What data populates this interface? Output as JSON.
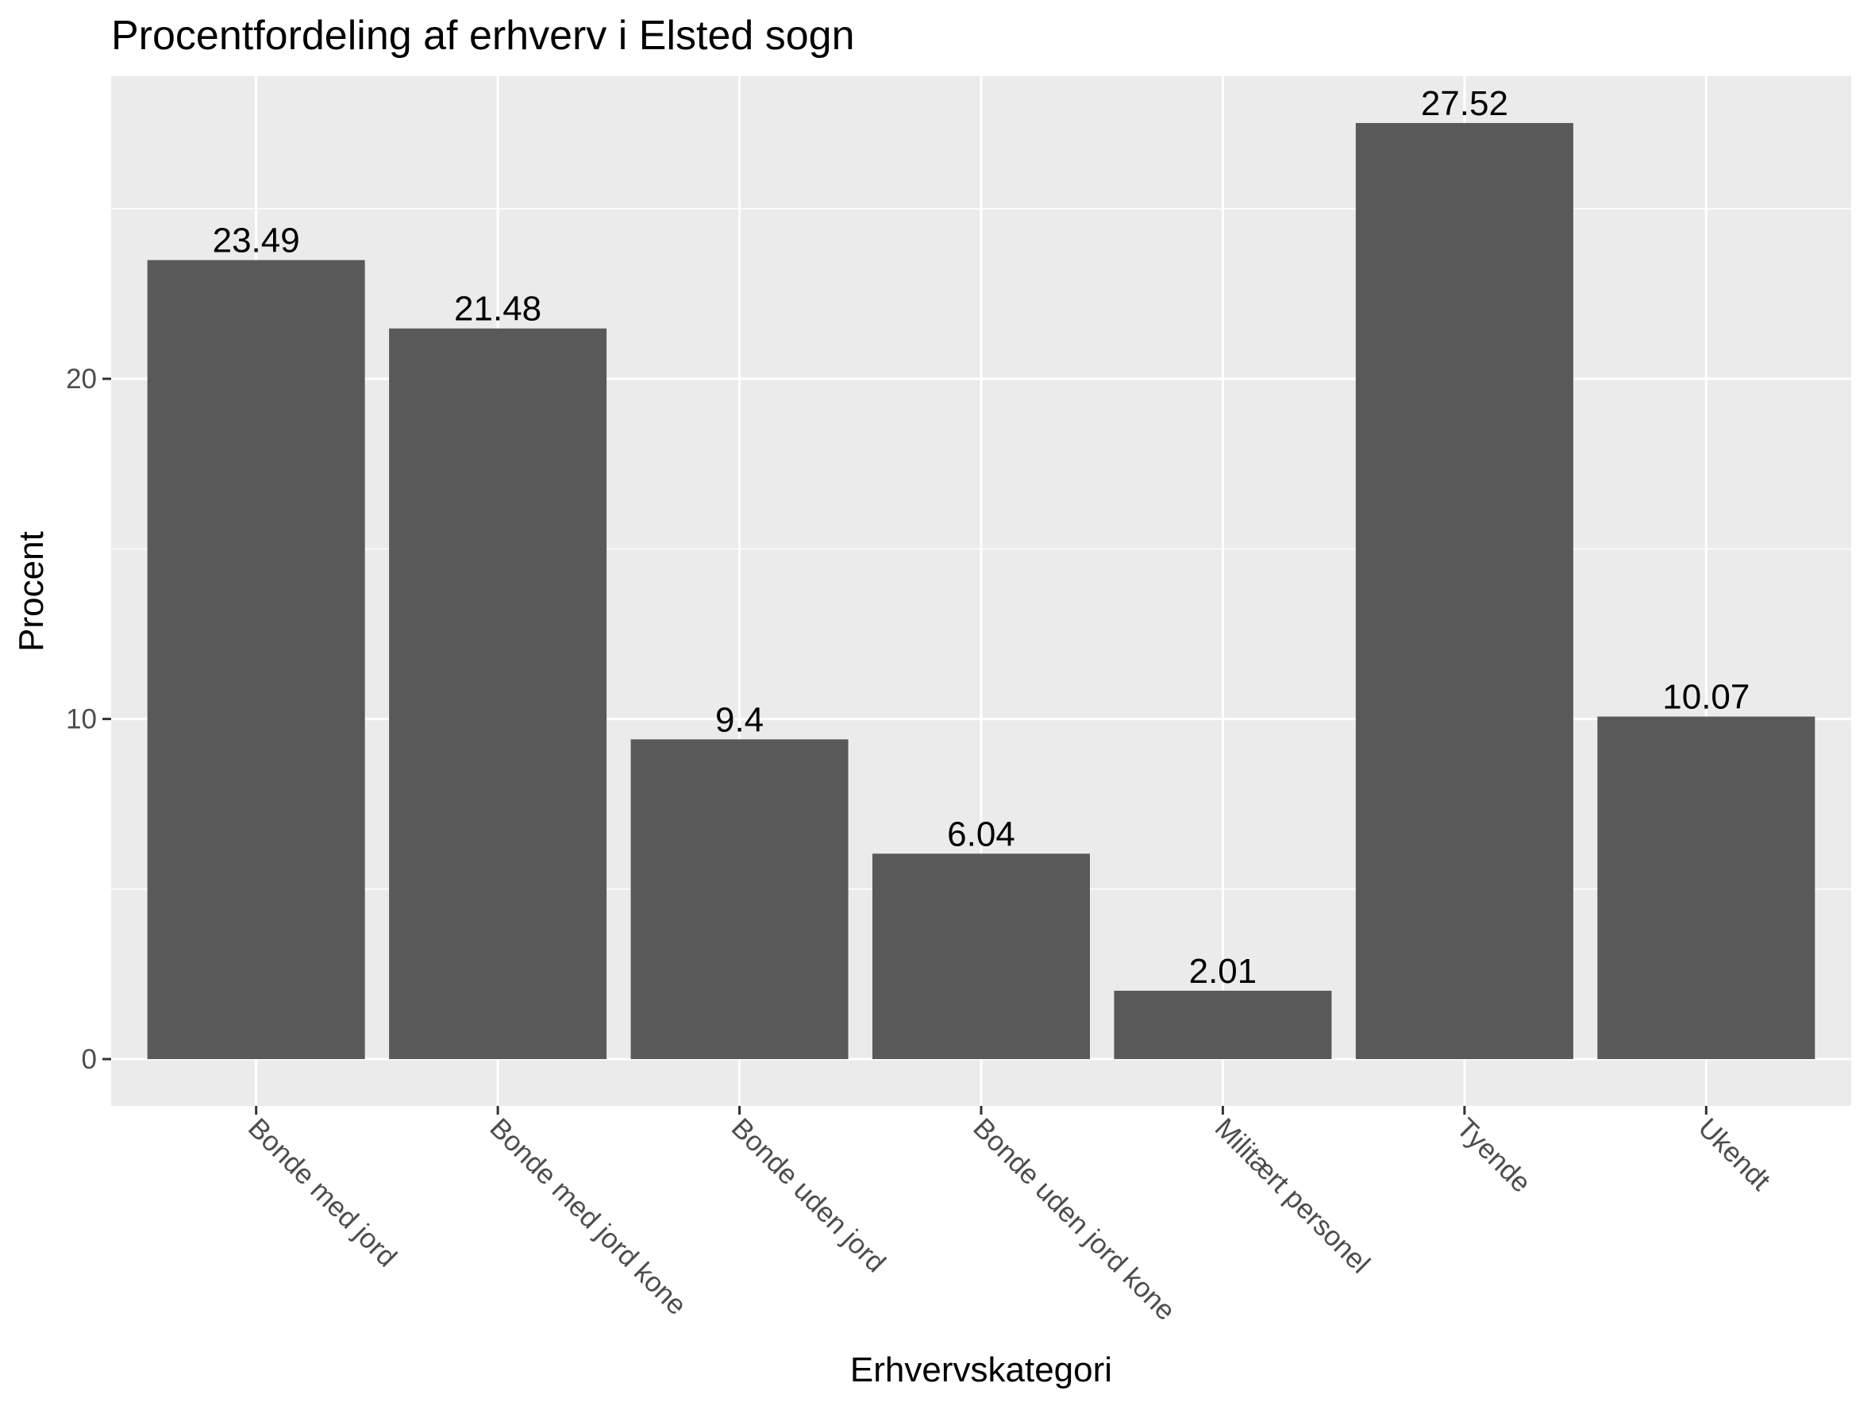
{
  "chart_data": {
    "type": "bar",
    "title": "Procentfordeling af erhverv i Elsted sogn",
    "xlabel": "Erhvervskategori",
    "ylabel": "Procent",
    "categories": [
      "Bonde med jord",
      "Bonde med jord kone",
      "Bonde uden jord",
      "Bonde uden jord kone",
      "Militært personel",
      "Tyende",
      "Ukendt"
    ],
    "values": [
      23.49,
      21.48,
      9.4,
      6.04,
      2.01,
      27.52,
      10.07
    ],
    "data_labels": [
      "23.49",
      "21.48",
      "9.4",
      "6.04",
      "2.01",
      "27.52",
      "10.07"
    ],
    "yticks": [
      0,
      10,
      20
    ],
    "ylim": [
      -1.376,
      28.896
    ],
    "grid": true,
    "colors": {
      "bar": "#595959",
      "panel": "#ebebeb",
      "grid": "#ffffff"
    }
  }
}
